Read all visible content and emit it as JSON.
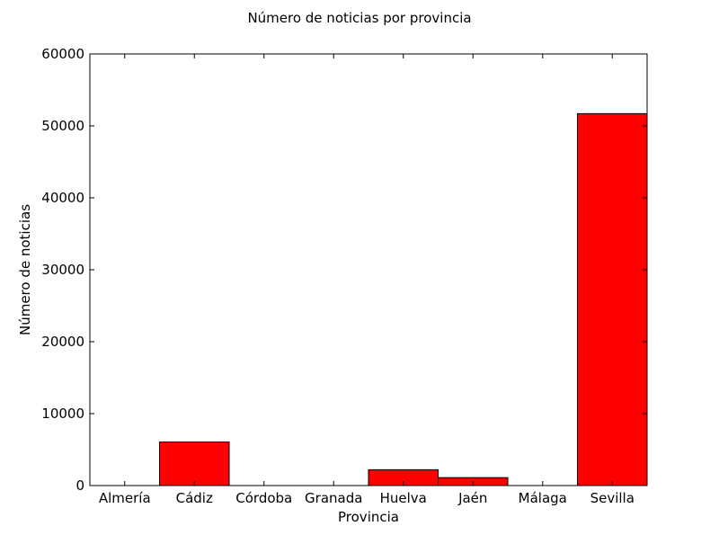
{
  "chart_data": {
    "type": "bar",
    "title": "Número de noticias por provincia",
    "xlabel": "Provincia",
    "ylabel": "Número de noticias",
    "categories": [
      "Almería",
      "Cádiz",
      "Córdoba",
      "Granada",
      "Huelva",
      "Jaén",
      "Málaga",
      "Sevilla"
    ],
    "values": [
      0,
      6050,
      0,
      0,
      2200,
      1100,
      0,
      51700
    ],
    "ylim": [
      0,
      60000
    ],
    "yticks": [
      0,
      10000,
      20000,
      30000,
      40000,
      50000,
      60000
    ],
    "ytick_labels": [
      "0",
      "10000",
      "20000",
      "30000",
      "40000",
      "50000",
      "60000"
    ],
    "grid": false,
    "bar_color": "#ff0000",
    "edge_color": "#000000"
  }
}
